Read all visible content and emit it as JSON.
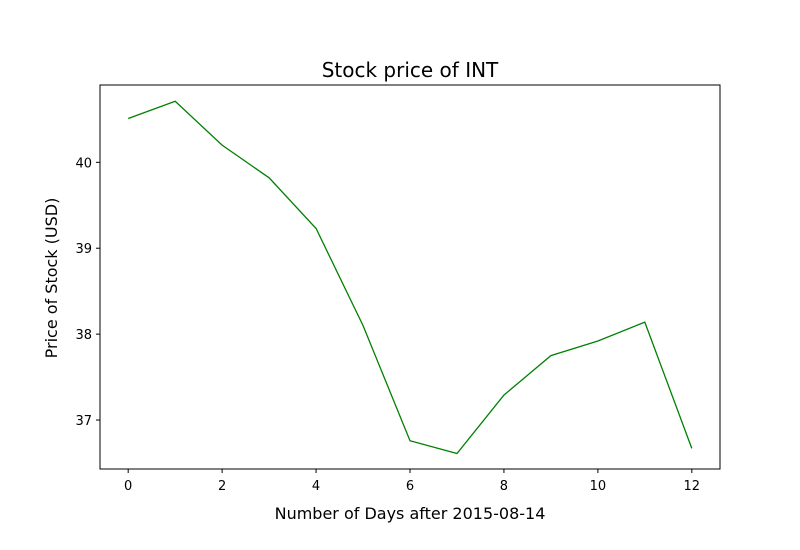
{
  "chart_data": {
    "type": "line",
    "title": "Stock price of INT",
    "xlabel": "Number of Days after 2015-08-14",
    "ylabel": "Price of Stock (USD)",
    "x": [
      0,
      1,
      2,
      3,
      4,
      5,
      6,
      7,
      8,
      9,
      10,
      11,
      12
    ],
    "series": [
      {
        "values": [
          40.51,
          40.71,
          40.2,
          39.82,
          39.23,
          38.1,
          36.76,
          36.61,
          37.29,
          37.75,
          37.92,
          38.14,
          36.67
        ]
      }
    ],
    "x_ticks": [
      "0",
      "2",
      "4",
      "6",
      "8",
      "10",
      "12"
    ],
    "y_ticks": [
      "37",
      "38",
      "39",
      "40"
    ],
    "xlim": [
      -0.6,
      12.6
    ],
    "ylim": [
      36.43,
      40.9
    ],
    "grid": false,
    "colors": {
      "line": "#008000",
      "axes": "#000000"
    }
  }
}
